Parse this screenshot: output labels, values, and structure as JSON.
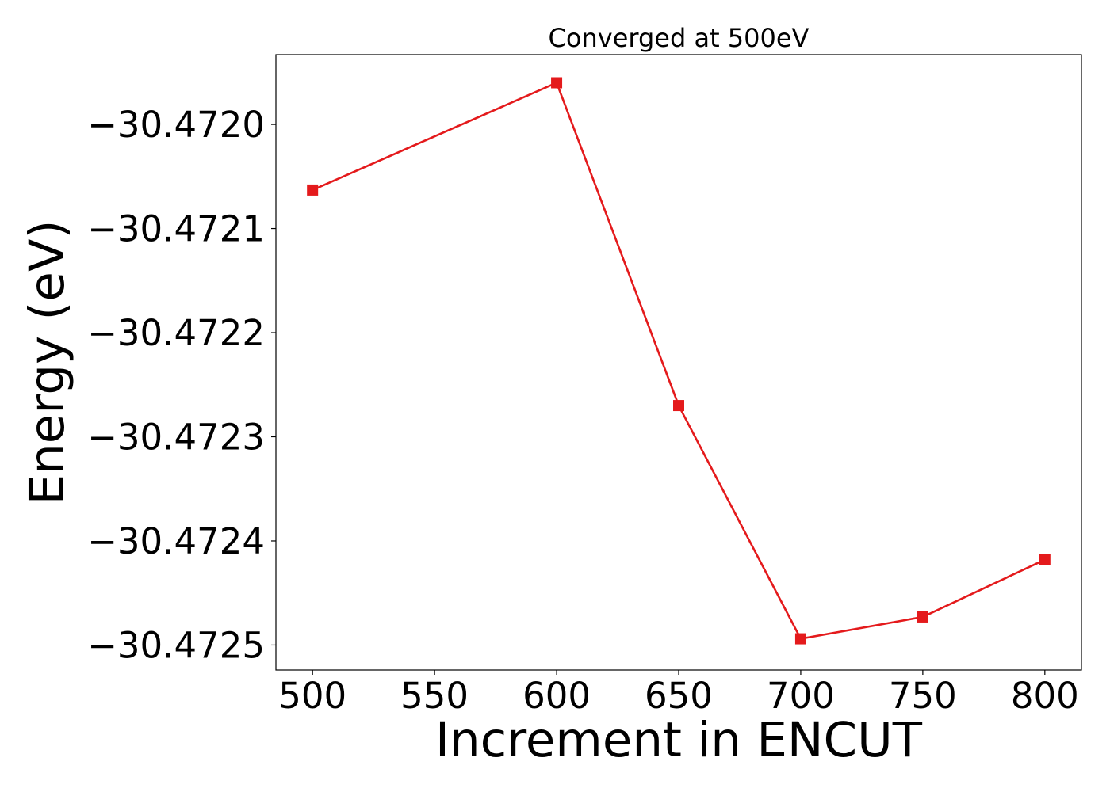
{
  "chart_data": {
    "type": "line",
    "title": "Converged at 500eV",
    "xlabel": "Increment in ENCUT",
    "ylabel": "Energy (eV)",
    "x": [
      500,
      600,
      650,
      700,
      750,
      800
    ],
    "series": [
      {
        "values": [
          -30.472063,
          -30.47196,
          -30.47227,
          -30.472494,
          -30.472473,
          -30.472418
        ],
        "color": "#e41a1c",
        "marker": "square"
      }
    ],
    "x_ticks": [
      500,
      550,
      600,
      650,
      700,
      750,
      800
    ],
    "x_tick_labels": [
      "500",
      "550",
      "600",
      "650",
      "700",
      "750",
      "800"
    ],
    "y_ticks": [
      -30.472,
      -30.4721,
      -30.4722,
      -30.4723,
      -30.4724,
      -30.4725
    ],
    "y_tick_labels": [
      "−30.4720",
      "−30.4721",
      "−30.4722",
      "−30.4723",
      "−30.4724",
      "−30.4725"
    ],
    "xlim": [
      485,
      815
    ],
    "ylim": [
      -30.472524,
      -30.471933
    ],
    "grid": false,
    "legend": "none"
  }
}
